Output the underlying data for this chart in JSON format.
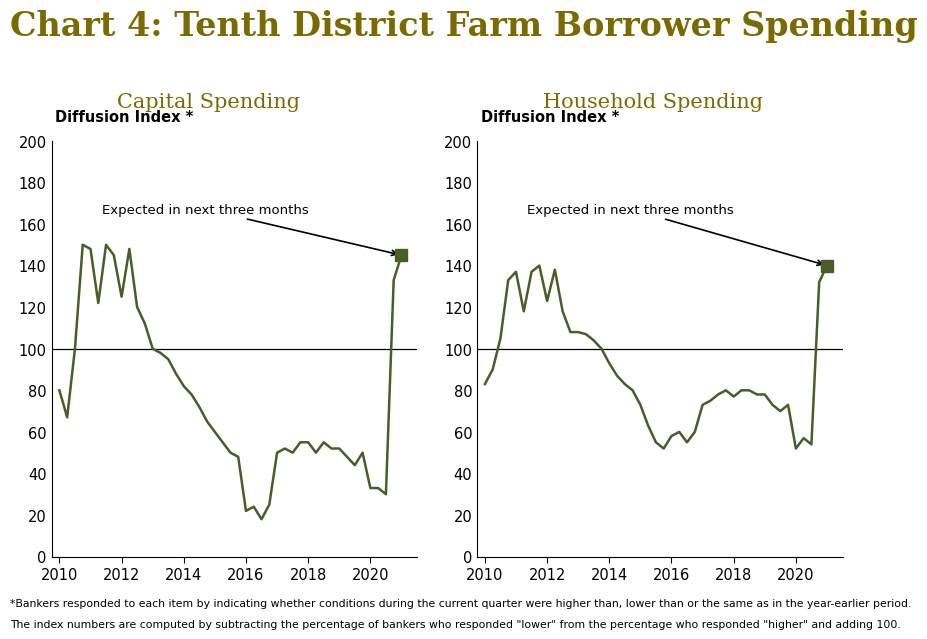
{
  "title": "Chart 4: Tenth District Farm Borrower Spending",
  "title_color": "#7a6a00",
  "title_fontsize": 24,
  "subtitle_left": "Capital Spending",
  "subtitle_right": "Household Spending",
  "subtitle_color": "#7a6a00",
  "subtitle_fontsize": 15,
  "ylabel": "Diffusion Index *",
  "line_color": "#4a5c28",
  "background_color": "#ffffff",
  "ylim": [
    0,
    200
  ],
  "yticks": [
    0,
    20,
    40,
    60,
    80,
    100,
    120,
    140,
    160,
    180,
    200
  ],
  "annotation_text": "Expected in next three months",
  "footnote_line1": "*Bankers responded to each item by indicating whether conditions during the current quarter were higher than, lower than or the same as in the year-earlier period.",
  "footnote_line2": "The index numbers are computed by subtracting the percentage of bankers who responded \"lower\" from the percentage who responded \"higher\" and adding 100.",
  "capital_x": [
    2010.0,
    2010.25,
    2010.5,
    2010.75,
    2011.0,
    2011.25,
    2011.5,
    2011.75,
    2012.0,
    2012.25,
    2012.5,
    2012.75,
    2013.0,
    2013.25,
    2013.5,
    2013.75,
    2014.0,
    2014.25,
    2014.5,
    2014.75,
    2015.0,
    2015.25,
    2015.5,
    2015.75,
    2016.0,
    2016.25,
    2016.5,
    2016.75,
    2017.0,
    2017.25,
    2017.5,
    2017.75,
    2018.0,
    2018.25,
    2018.5,
    2018.75,
    2019.0,
    2019.25,
    2019.5,
    2019.75,
    2020.0,
    2020.25,
    2020.5,
    2020.75,
    2021.0
  ],
  "capital_y": [
    80,
    67,
    100,
    150,
    148,
    122,
    150,
    145,
    125,
    148,
    120,
    112,
    100,
    98,
    95,
    88,
    82,
    78,
    72,
    65,
    60,
    55,
    50,
    48,
    22,
    24,
    18,
    25,
    50,
    52,
    50,
    55,
    55,
    50,
    55,
    52,
    52,
    48,
    44,
    50,
    33,
    33,
    30,
    133,
    145
  ],
  "capital_expected": 145,
  "household_x": [
    2010.0,
    2010.25,
    2010.5,
    2010.75,
    2011.0,
    2011.25,
    2011.5,
    2011.75,
    2012.0,
    2012.25,
    2012.5,
    2012.75,
    2013.0,
    2013.25,
    2013.5,
    2013.75,
    2014.0,
    2014.25,
    2014.5,
    2014.75,
    2015.0,
    2015.25,
    2015.5,
    2015.75,
    2016.0,
    2016.25,
    2016.5,
    2016.75,
    2017.0,
    2017.25,
    2017.5,
    2017.75,
    2018.0,
    2018.25,
    2018.5,
    2018.75,
    2019.0,
    2019.25,
    2019.5,
    2019.75,
    2020.0,
    2020.25,
    2020.5,
    2020.75,
    2021.0
  ],
  "household_y": [
    83,
    90,
    105,
    133,
    137,
    118,
    137,
    140,
    123,
    138,
    118,
    108,
    108,
    107,
    104,
    100,
    93,
    87,
    83,
    80,
    73,
    63,
    55,
    52,
    58,
    60,
    55,
    60,
    73,
    75,
    78,
    80,
    77,
    80,
    80,
    78,
    78,
    73,
    70,
    73,
    52,
    57,
    54,
    132,
    140
  ],
  "household_expected": 140,
  "xticks": [
    2010,
    2012,
    2014,
    2016,
    2018,
    2020
  ],
  "xlim": [
    2009.75,
    2021.5
  ]
}
